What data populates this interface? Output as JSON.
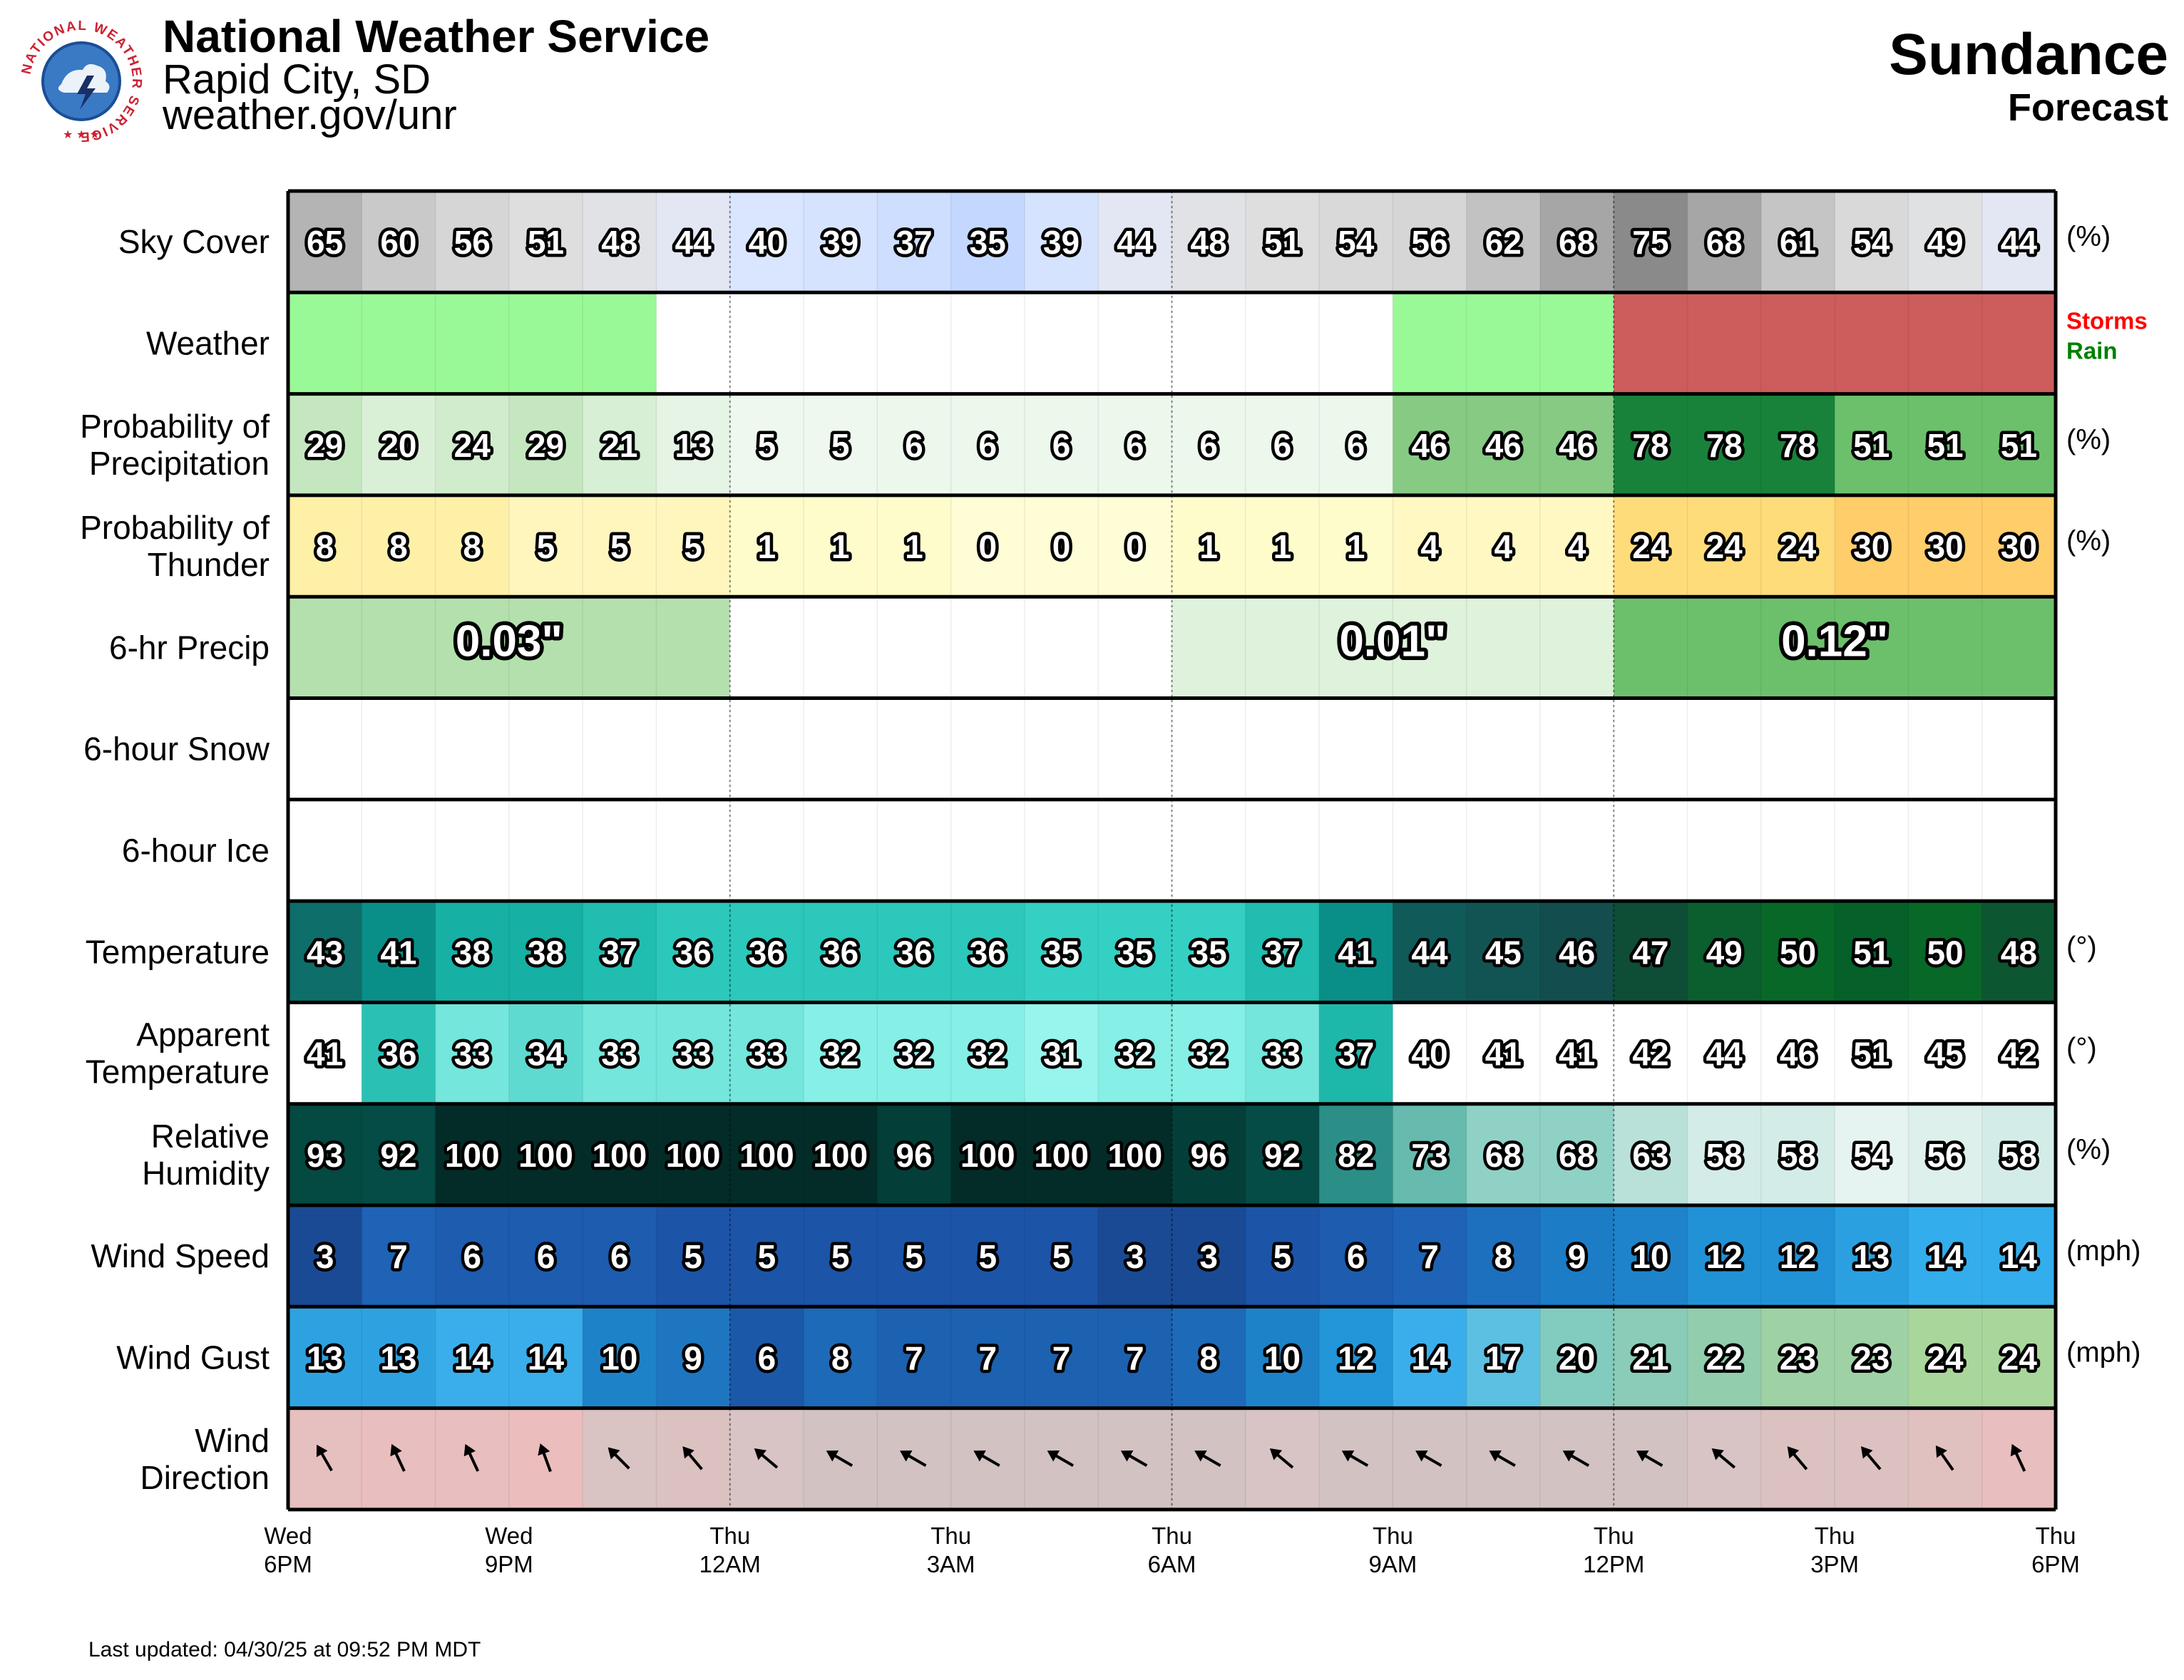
{
  "header": {
    "org": "National Weather Service",
    "city": "Rapid City, SD",
    "site": "weather.gov/unr",
    "location": "Sundance",
    "subtitle": "Forecast",
    "seal_text": "NATIONAL WEATHER SERVICE"
  },
  "footer": {
    "updated": "Last updated: 04/30/25 at 09:52 PM MDT"
  },
  "chart_data": {
    "type": "table",
    "hours": 24,
    "x_ticks": [
      {
        "hour": 0,
        "day": "Wed",
        "time": "6PM"
      },
      {
        "hour": 3,
        "day": "Wed",
        "time": "9PM"
      },
      {
        "hour": 6,
        "day": "Thu",
        "time": "12AM"
      },
      {
        "hour": 9,
        "day": "Thu",
        "time": "3AM"
      },
      {
        "hour": 12,
        "day": "Thu",
        "time": "6AM"
      },
      {
        "hour": 15,
        "day": "Thu",
        "time": "9AM"
      },
      {
        "hour": 18,
        "day": "Thu",
        "time": "12PM"
      },
      {
        "hour": 21,
        "day": "Thu",
        "time": "3PM"
      },
      {
        "hour": 24,
        "day": "Thu",
        "time": "6PM"
      }
    ],
    "rows": [
      {
        "key": "sky",
        "label": [
          "Sky Cover"
        ],
        "unit": "(%)",
        "values": [
          65,
          60,
          56,
          51,
          48,
          44,
          40,
          39,
          37,
          35,
          39,
          44,
          48,
          51,
          54,
          56,
          62,
          68,
          75,
          68,
          61,
          54,
          49,
          44
        ]
      },
      {
        "key": "weather",
        "label": [
          "Weather"
        ],
        "segments": [
          {
            "start": 0,
            "end": 5,
            "type": "Rain"
          },
          {
            "start": 15,
            "end": 18,
            "type": "Rain"
          },
          {
            "start": 18,
            "end": 24,
            "type": "Storms"
          }
        ],
        "legend": [
          {
            "text": "Storms",
            "color": "#ff0000"
          },
          {
            "text": "Rain",
            "color": "#008000"
          }
        ]
      },
      {
        "key": "pop",
        "label": [
          "Probability of",
          "Precipitation"
        ],
        "unit": "(%)",
        "values": [
          29,
          20,
          24,
          29,
          21,
          13,
          5,
          5,
          6,
          6,
          6,
          6,
          6,
          6,
          6,
          46,
          46,
          46,
          78,
          78,
          78,
          51,
          51,
          51
        ]
      },
      {
        "key": "thunder",
        "label": [
          "Probability of",
          "Thunder"
        ],
        "unit": "(%)",
        "values": [
          8,
          8,
          8,
          5,
          5,
          5,
          1,
          1,
          1,
          0,
          0,
          0,
          1,
          1,
          1,
          4,
          4,
          4,
          24,
          24,
          24,
          30,
          30,
          30
        ]
      },
      {
        "key": "qpf",
        "label": [
          "6-hr Precip"
        ],
        "periods": [
          {
            "start": 0,
            "end": 6,
            "value": 0.03,
            "text": "0.03\""
          },
          {
            "start": 6,
            "end": 12,
            "value": 0,
            "text": ""
          },
          {
            "start": 12,
            "end": 18,
            "value": 0.01,
            "text": "0.01\""
          },
          {
            "start": 18,
            "end": 24,
            "value": 0.12,
            "text": "0.12\""
          }
        ]
      },
      {
        "key": "snow",
        "label": [
          "6-hour Snow"
        ],
        "periods": []
      },
      {
        "key": "ice",
        "label": [
          "6-hour Ice"
        ],
        "periods": []
      },
      {
        "key": "temp",
        "label": [
          "Temperature"
        ],
        "unit": "(°)",
        "values": [
          43,
          41,
          38,
          38,
          37,
          36,
          36,
          36,
          36,
          36,
          35,
          35,
          35,
          37,
          41,
          44,
          45,
          46,
          47,
          49,
          50,
          51,
          50,
          48
        ]
      },
      {
        "key": "apparent",
        "label": [
          "Apparent",
          "Temperature"
        ],
        "unit": "(°)",
        "values": [
          41,
          36,
          33,
          34,
          33,
          33,
          33,
          32,
          32,
          32,
          31,
          32,
          32,
          33,
          37,
          40,
          41,
          41,
          42,
          44,
          46,
          51,
          45,
          42
        ]
      },
      {
        "key": "rh",
        "label": [
          "Relative",
          "Humidity"
        ],
        "unit": "(%)",
        "values": [
          93,
          92,
          100,
          100,
          100,
          100,
          100,
          100,
          96,
          100,
          100,
          100,
          96,
          92,
          82,
          73,
          68,
          68,
          63,
          58,
          58,
          54,
          56,
          58
        ]
      },
      {
        "key": "wind",
        "label": [
          "Wind Speed"
        ],
        "unit": "(mph)",
        "values": [
          3,
          7,
          6,
          6,
          6,
          5,
          5,
          5,
          5,
          5,
          5,
          3,
          3,
          5,
          6,
          7,
          8,
          9,
          10,
          12,
          12,
          13,
          14,
          14
        ]
      },
      {
        "key": "gust",
        "label": [
          "Wind Gust"
        ],
        "unit": "(mph)",
        "values": [
          13,
          13,
          14,
          14,
          10,
          9,
          6,
          8,
          7,
          7,
          7,
          7,
          8,
          10,
          12,
          14,
          17,
          20,
          21,
          22,
          23,
          23,
          24,
          24
        ]
      },
      {
        "key": "dir",
        "label": [
          "Wind",
          "Direction"
        ],
        "values_deg": [
          330,
          335,
          335,
          340,
          315,
          320,
          310,
          300,
          300,
          300,
          300,
          300,
          300,
          310,
          300,
          300,
          300,
          300,
          300,
          310,
          320,
          320,
          325,
          335
        ]
      }
    ]
  }
}
